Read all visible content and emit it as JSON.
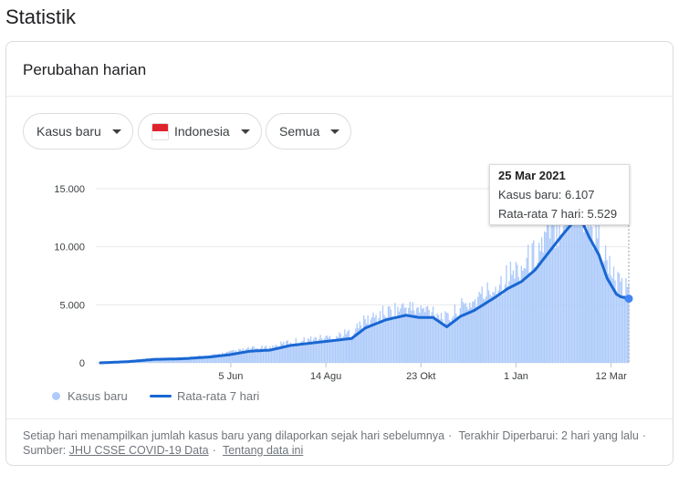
{
  "page": {
    "heading": "Statistik"
  },
  "card": {
    "title": "Perubahan harian"
  },
  "filters": {
    "metric": "Kasus baru",
    "region": "Indonesia",
    "range": "Semua"
  },
  "colors": {
    "bar": "#aecbfa",
    "line": "#1967d2",
    "grid": "#e8eaed",
    "flag_red": "#e0232d"
  },
  "tooltip": {
    "date": "25 Mar 2021",
    "cases_label": "Kasus baru: 6.107",
    "avg_label": "Rata-rata 7 hari: 5.529"
  },
  "legend": {
    "bars": "Kasus baru",
    "line": "Rata-rata 7 hari"
  },
  "footer": {
    "text": "Setiap hari menampilkan jumlah kasus baru yang dilaporkan sejak hari sebelumnya",
    "updated": "Terakhir Diperbarui: 2 hari yang lalu",
    "source_label": "Sumber:",
    "source_link": "JHU CSSE COVID-19 Data",
    "about_link": "Tentang data ini"
  },
  "chart_data": {
    "type": "bar",
    "title": "",
    "ylim": [
      0,
      15000
    ],
    "y_ticks": [
      "0",
      "5.000",
      "10.000",
      "15.000"
    ],
    "y_tick_values": [
      0,
      5000,
      10000,
      15000
    ],
    "x_ticks": [
      "5 Jun",
      "14 Agu",
      "23 Okt",
      "1 Jan",
      "12 Mar"
    ],
    "x_tick_days": [
      96,
      166,
      236,
      306,
      376
    ],
    "x_range_days": [
      0,
      389
    ],
    "series": [
      {
        "name": "Rata-rata 7 hari",
        "kind": "line",
        "points": [
          [
            0,
            0
          ],
          [
            20,
            100
          ],
          [
            40,
            300
          ],
          [
            60,
            350
          ],
          [
            80,
            500
          ],
          [
            95,
            700
          ],
          [
            110,
            1000
          ],
          [
            125,
            1100
          ],
          [
            140,
            1500
          ],
          [
            155,
            1700
          ],
          [
            170,
            1900
          ],
          [
            185,
            2100
          ],
          [
            195,
            3000
          ],
          [
            210,
            3700
          ],
          [
            225,
            4100
          ],
          [
            235,
            3900
          ],
          [
            245,
            3900
          ],
          [
            255,
            3100
          ],
          [
            265,
            4000
          ],
          [
            275,
            4500
          ],
          [
            290,
            5600
          ],
          [
            300,
            6400
          ],
          [
            310,
            7000
          ],
          [
            320,
            8000
          ],
          [
            330,
            9500
          ],
          [
            340,
            11000
          ],
          [
            348,
            12100
          ],
          [
            354,
            12300
          ],
          [
            360,
            10800
          ],
          [
            367,
            9300
          ],
          [
            373,
            7300
          ],
          [
            380,
            5900
          ],
          [
            383,
            5700
          ],
          [
            389,
            5529
          ]
        ]
      },
      {
        "name": "Kasus baru",
        "kind": "bars",
        "points": [
          [
            0,
            0
          ],
          [
            20,
            150
          ],
          [
            40,
            350
          ],
          [
            60,
            450
          ],
          [
            80,
            600
          ],
          [
            95,
            900
          ],
          [
            110,
            1200
          ],
          [
            125,
            1300
          ],
          [
            140,
            1800
          ],
          [
            155,
            2000
          ],
          [
            170,
            2200
          ],
          [
            185,
            2600
          ],
          [
            195,
            3600
          ],
          [
            210,
            4300
          ],
          [
            225,
            4800
          ],
          [
            235,
            4500
          ],
          [
            245,
            4600
          ],
          [
            255,
            3700
          ],
          [
            265,
            4700
          ],
          [
            275,
            5300
          ],
          [
            290,
            6500
          ],
          [
            300,
            7500
          ],
          [
            310,
            8200
          ],
          [
            320,
            9300
          ],
          [
            330,
            11000
          ],
          [
            340,
            12600
          ],
          [
            348,
            13800
          ],
          [
            354,
            13500
          ],
          [
            360,
            12200
          ],
          [
            367,
            10500
          ],
          [
            373,
            8500
          ],
          [
            380,
            6800
          ],
          [
            383,
            6500
          ],
          [
            389,
            6107
          ]
        ]
      }
    ],
    "highlight": {
      "x_day": 389,
      "y": 5529
    }
  }
}
